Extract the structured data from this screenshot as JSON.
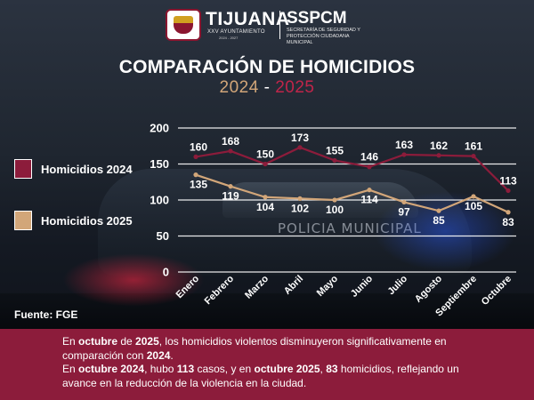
{
  "header": {
    "brand_name": "TIJUANA",
    "brand_sub": "XXV AYUNTAMIENTO",
    "brand_years": "2024 - 2027",
    "agency_name": "SSPCM",
    "agency_sub": "SECRETARÍA DE SEGURIDAD Y PROTECCIÓN CIUDADANA MUNICIPAL",
    "background_text": "POLICIA MUNICIPAL"
  },
  "colors": {
    "series_2024": "#8c1c3b",
    "series_2025": "#d2a679",
    "footer_bg": "#8c1c3b"
  },
  "chart_data": {
    "type": "line",
    "title": "COMPARACIÓN DE HOMICIDIOS",
    "subtitle": {
      "first": "2024",
      "separator": "-",
      "second": "2025"
    },
    "categories": [
      "Enero",
      "Febrero",
      "Marzo",
      "Abril",
      "Mayo",
      "Junio",
      "Julio",
      "Agosto",
      "Septiembre",
      "Octubre"
    ],
    "series": [
      {
        "name": "Homicidios 2024",
        "values": [
          160,
          168,
          150,
          173,
          155,
          146,
          163,
          162,
          161,
          113
        ]
      },
      {
        "name": "Homicidios 2025",
        "values": [
          135,
          119,
          104,
          102,
          100,
          114,
          97,
          85,
          105,
          83
        ]
      }
    ],
    "yticks": [
      0,
      50,
      100,
      150,
      200
    ],
    "ylim": [
      0,
      200
    ],
    "xlabel": "",
    "ylabel": "",
    "grid": true,
    "legend_position": "left"
  },
  "source": "Fuente: FGE",
  "footer": {
    "line1": [
      {
        "text": "En ",
        "bold": false
      },
      {
        "text": "octubre",
        "bold": true
      },
      {
        "text": " de ",
        "bold": false
      },
      {
        "text": "2025",
        "bold": true
      },
      {
        "text": ", los homicidios violentos disminuyeron significativamente en comparación con ",
        "bold": false
      },
      {
        "text": "2024",
        "bold": true
      },
      {
        "text": ".",
        "bold": false
      }
    ],
    "line2": [
      {
        "text": "En ",
        "bold": false
      },
      {
        "text": "octubre 2024",
        "bold": true
      },
      {
        "text": ", hubo ",
        "bold": false
      },
      {
        "text": "113",
        "bold": true
      },
      {
        "text": " casos, y en ",
        "bold": false
      },
      {
        "text": "octubre 2025",
        "bold": true
      },
      {
        "text": ", ",
        "bold": false
      },
      {
        "text": "83",
        "bold": true
      },
      {
        "text": " homicidios, reflejando un avance en la reducción de la violencia en la ciudad.",
        "bold": false
      }
    ]
  }
}
